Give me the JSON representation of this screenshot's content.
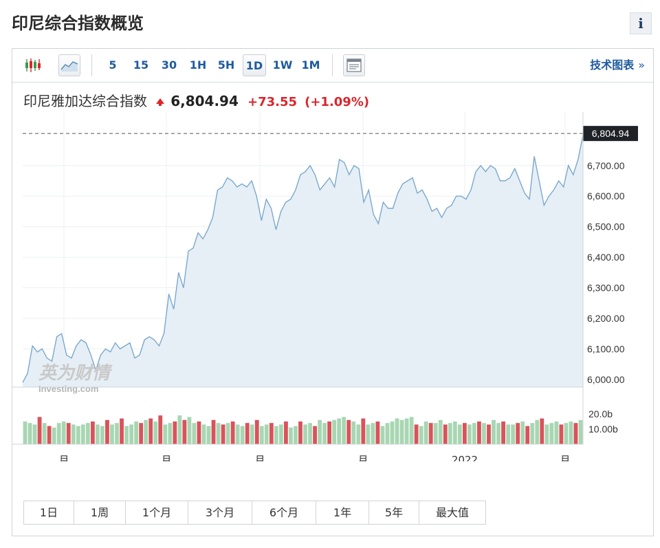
{
  "page": {
    "title": "印尼综合指数概览",
    "info_label": "i"
  },
  "toolbar": {
    "timeframes": [
      "5",
      "15",
      "30",
      "1H",
      "5H",
      "1D",
      "1W",
      "1M"
    ],
    "active_timeframe": "1D",
    "tech_chart_link": "技术图表",
    "tech_chart_chevron": "»",
    "icons": [
      "candlestick-icon",
      "area-chart-icon",
      "table-view-icon"
    ]
  },
  "quote": {
    "name": "印尼雅加达综合指数",
    "price": "6,804.94",
    "change": "+73.55",
    "change_pct": "(+1.09%)",
    "direction": "up"
  },
  "chart_data": {
    "type": "area",
    "last_price_label": "6,804.94",
    "last_price": 6804.94,
    "ylim": [
      5975,
      6830
    ],
    "y_ticks": [
      6000,
      6100,
      6200,
      6300,
      6400,
      6500,
      6600,
      6700
    ],
    "y_tick_labels": [
      "6,000.00",
      "6,100.00",
      "6,200.00",
      "6,300.00",
      "6,400.00",
      "6,500.00",
      "6,600.00",
      "6,700.00"
    ],
    "x_tick_labels": [
      "月",
      "月",
      "月",
      "月",
      "2022",
      "月"
    ],
    "grid": true,
    "watermark": {
      "brand": "英为财情",
      "sub": "Investing.com"
    },
    "values": [
      5990,
      6020,
      6110,
      6090,
      6100,
      6070,
      6060,
      6140,
      6150,
      6080,
      6070,
      6110,
      6130,
      6120,
      6080,
      6030,
      6080,
      6100,
      6090,
      6120,
      6100,
      6110,
      6120,
      6070,
      6080,
      6130,
      6140,
      6130,
      6110,
      6150,
      6280,
      6230,
      6350,
      6300,
      6420,
      6430,
      6480,
      6460,
      6490,
      6530,
      6620,
      6630,
      6660,
      6650,
      6630,
      6640,
      6630,
      6650,
      6600,
      6520,
      6590,
      6560,
      6490,
      6550,
      6580,
      6590,
      6620,
      6670,
      6680,
      6700,
      6670,
      6620,
      6640,
      6660,
      6630,
      6720,
      6710,
      6670,
      6700,
      6690,
      6580,
      6620,
      6540,
      6510,
      6580,
      6560,
      6560,
      6610,
      6640,
      6650,
      6660,
      6610,
      6620,
      6590,
      6550,
      6560,
      6530,
      6560,
      6570,
      6600,
      6600,
      6590,
      6620,
      6680,
      6700,
      6680,
      6700,
      6690,
      6650,
      6650,
      6660,
      6690,
      6650,
      6610,
      6590,
      6730,
      6650,
      6570,
      6600,
      6620,
      6650,
      6630,
      6700,
      6670,
      6720,
      6800
    ],
    "volume": {
      "tick_labels": [
        "20.0b",
        "10.00b"
      ],
      "values": [
        15,
        14,
        13,
        18,
        14,
        12,
        11,
        14,
        15,
        14,
        13,
        12,
        13,
        14,
        15,
        13,
        12,
        16,
        13,
        14,
        17,
        12,
        13,
        15,
        14,
        16,
        17,
        15,
        19,
        13,
        14,
        15,
        19,
        16,
        18,
        14,
        15,
        13,
        12,
        16,
        14,
        13,
        14,
        15,
        13,
        12,
        14,
        13,
        16,
        12,
        13,
        14,
        12,
        13,
        15,
        11,
        12,
        15,
        13,
        14,
        12,
        16,
        14,
        15,
        16,
        17,
        18,
        16,
        15,
        13,
        17,
        13,
        14,
        15,
        12,
        14,
        15,
        17,
        16,
        17,
        18,
        13,
        12,
        15,
        14,
        14,
        16,
        13,
        14,
        15,
        13,
        14,
        13,
        14,
        15,
        14,
        13,
        16,
        14,
        15,
        13,
        13,
        14,
        15,
        12,
        14,
        16,
        17,
        13,
        14,
        15,
        13,
        14,
        15,
        14,
        16
      ],
      "colors": [
        "g",
        "g",
        "g",
        "r",
        "g",
        "r",
        "g",
        "g",
        "g",
        "r",
        "g",
        "g",
        "g",
        "g",
        "r",
        "g",
        "g",
        "r",
        "g",
        "g",
        "r",
        "g",
        "g",
        "g",
        "r",
        "g",
        "r",
        "g",
        "r",
        "g",
        "g",
        "r",
        "g",
        "r",
        "g",
        "g",
        "r",
        "g",
        "g",
        "r",
        "g",
        "r",
        "g",
        "r",
        "g",
        "g",
        "r",
        "g",
        "r",
        "g",
        "g",
        "r",
        "g",
        "g",
        "r",
        "g",
        "g",
        "r",
        "g",
        "g",
        "r",
        "g",
        "g",
        "r",
        "g",
        "g",
        "g",
        "r",
        "g",
        "g",
        "r",
        "g",
        "g",
        "r",
        "g",
        "g",
        "g",
        "g",
        "g",
        "g",
        "g",
        "r",
        "g",
        "g",
        "r",
        "g",
        "g",
        "r",
        "g",
        "g",
        "g",
        "r",
        "g",
        "g",
        "r",
        "g",
        "r",
        "g",
        "g",
        "r",
        "g",
        "g",
        "r",
        "g",
        "r",
        "g",
        "g",
        "r",
        "g",
        "g",
        "g",
        "r",
        "g",
        "g",
        "r",
        "g"
      ]
    }
  },
  "ranges": [
    "1日",
    "1周",
    "1个月",
    "3个月",
    "6个月",
    "1年",
    "5年",
    "最大值"
  ],
  "colors": {
    "accent_blue": "#1f5a9c",
    "up_red": "#d9262c",
    "line": "#7aa8cc",
    "area": "#e6eff6",
    "vol_green": "#a8d6b2",
    "vol_red": "#d9535a"
  }
}
